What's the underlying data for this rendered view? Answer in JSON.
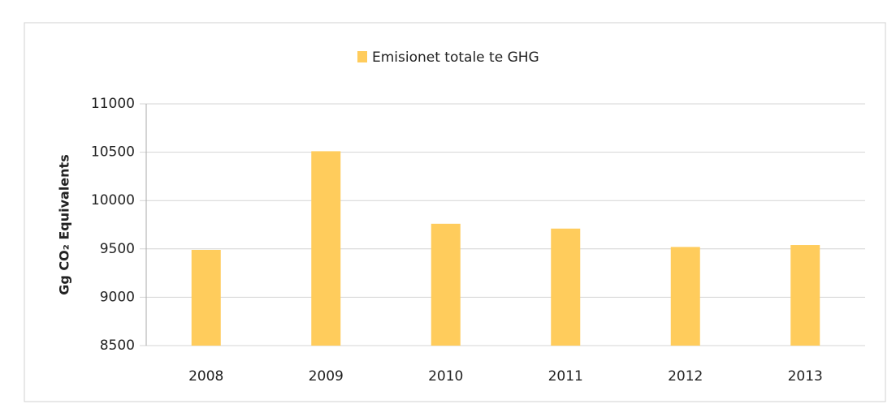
{
  "chart_data": {
    "type": "bar",
    "y_axis_label": "Gg CO₂ Equivalents",
    "legend_name": "Emisionet totale te GHG",
    "categories": [
      "2008",
      "2009",
      "2010",
      "2011",
      "2012",
      "2013"
    ],
    "values": [
      9490,
      10510,
      9760,
      9710,
      9520,
      9540
    ],
    "color": "#ffcc5c",
    "ylim": [
      8500,
      11000
    ],
    "yticks": [
      8500,
      9000,
      9500,
      10000,
      10500,
      11000
    ],
    "grid": true,
    "legend": "top"
  }
}
